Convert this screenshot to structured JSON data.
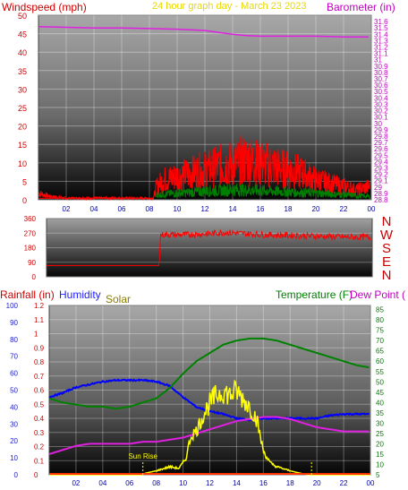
{
  "chart_data": [
    {
      "type": "line",
      "title": "24 hour graph day - March 23 2023",
      "ylabel_left": "Windspeed (mph)",
      "ylabel_right": "Barometer (in)",
      "left_ylim": [
        0,
        50
      ],
      "left_ticks": [
        "0",
        "5",
        "10",
        "15",
        "20",
        "25",
        "30",
        "35",
        "40",
        "45",
        "50"
      ],
      "right_ylim": [
        28.8,
        31.7
      ],
      "right_ticks": [
        "28.8",
        "28.9",
        "29",
        "29.1",
        "29.2",
        "29.3",
        "29.4",
        "29.5",
        "29.6",
        "29.7",
        "29.8",
        "29.9",
        "30",
        "30.1",
        "30.2",
        "30.3",
        "30.4",
        "30.5",
        "30.6",
        "30.7",
        "30.8",
        "30.9",
        "31",
        "31.1",
        "31.2",
        "31.3",
        "31.4",
        "31.5",
        "31.6"
      ],
      "x_ticks": [
        "02",
        "04",
        "06",
        "08",
        "10",
        "12",
        "14",
        "16",
        "18",
        "20",
        "22",
        "00"
      ],
      "xlim": [
        0,
        24
      ],
      "grid": true,
      "series": [
        {
          "name": "Barometer",
          "axis": "right",
          "color": "#e020e0",
          "x": [
            0,
            2,
            4,
            6,
            8,
            10,
            12,
            13,
            14,
            15,
            16,
            18,
            20,
            22,
            23.8
          ],
          "y": [
            31.52,
            31.51,
            31.5,
            31.5,
            31.49,
            31.48,
            31.46,
            31.43,
            31.4,
            31.38,
            31.37,
            31.37,
            31.37,
            31.36,
            31.36
          ]
        },
        {
          "name": "Wind Gust",
          "axis": "left",
          "color": "#ff0000",
          "x": [
            0,
            0.8,
            2,
            4,
            6,
            8.3,
            8.5,
            9,
            10,
            11,
            12,
            13,
            14,
            15,
            16,
            17,
            18,
            19,
            20,
            21,
            22,
            23,
            23.9
          ],
          "y": [
            2,
            1,
            0.5,
            0.5,
            0.5,
            0.5,
            4,
            6,
            7,
            8,
            9,
            10,
            11,
            12,
            11,
            10,
            9,
            8,
            6,
            5,
            4,
            3,
            4
          ]
        },
        {
          "name": "Wind Speed",
          "axis": "left",
          "color": "#008000",
          "x": [
            8.5,
            10,
            12,
            14,
            16,
            18,
            20,
            22,
            23.9
          ],
          "y": [
            1.5,
            2,
            2.5,
            3,
            2.8,
            2.4,
            2,
            1.5,
            1
          ]
        }
      ]
    },
    {
      "type": "line",
      "ylabel_right": "N W S E N",
      "compass_letters": [
        "N",
        "W",
        "S",
        "E",
        "N"
      ],
      "left_ylim": [
        0,
        360
      ],
      "left_ticks": [
        "0",
        "90",
        "180",
        "270",
        "360"
      ],
      "xlim": [
        0,
        24
      ],
      "series": [
        {
          "name": "Wind Direction",
          "color": "#ff0000",
          "x": [
            0,
            8.3,
            8.4,
            10,
            12,
            13,
            14,
            16,
            18,
            20,
            22,
            23.9
          ],
          "y": [
            70,
            70,
            260,
            260,
            265,
            275,
            270,
            260,
            255,
            250,
            245,
            245
          ]
        }
      ]
    },
    {
      "type": "line",
      "ylabel_left": "Rainfall (in)",
      "ylabel_left2": "Humidity",
      "ylabel_solar": "Solar",
      "ylabel_right": "Temperature (F)",
      "ylabel_right2": "Dew Point (",
      "rain_ticks": [
        "0",
        "10",
        "20",
        "30",
        "40",
        "50",
        "60",
        "70",
        "80",
        "90",
        "100"
      ],
      "humidity_ticks": [
        "0",
        "0.1",
        "0.2",
        "0.3",
        "0.4",
        "0.5",
        "0.6",
        "0.7",
        "0.8",
        "0.9",
        "1",
        "1.1",
        "1.2"
      ],
      "humidity_ylim": [
        0,
        1.2
      ],
      "temp_ticks": [
        "5",
        "10",
        "15",
        "20",
        "25",
        "30",
        "35",
        "40",
        "45",
        "50",
        "55",
        "60",
        "65",
        "70",
        "75",
        "80",
        "85"
      ],
      "temp_ylim": [
        5,
        87
      ],
      "x_ticks": [
        "02",
        "04",
        "06",
        "08",
        "10",
        "12",
        "14",
        "16",
        "18",
        "20",
        "22",
        "00"
      ],
      "xlim": [
        0,
        24
      ],
      "annotations": [
        {
          "text": "Sun Rise",
          "x": 7.0
        },
        {
          "text": "",
          "x": 19.6
        }
      ],
      "series": [
        {
          "name": "Humidity",
          "color": "#0000ff",
          "x": [
            0,
            1,
            2,
            3,
            4,
            5,
            6,
            7,
            8,
            9,
            10,
            11,
            12,
            13,
            14,
            15,
            16,
            17,
            18,
            19,
            20,
            21,
            22,
            23,
            23.9
          ],
          "y": [
            0.55,
            0.58,
            0.62,
            0.64,
            0.66,
            0.67,
            0.67,
            0.67,
            0.66,
            0.63,
            0.55,
            0.48,
            0.45,
            0.43,
            0.4,
            0.39,
            0.4,
            0.4,
            0.4,
            0.4,
            0.4,
            0.42,
            0.43,
            0.43,
            0.43
          ]
        },
        {
          "name": "Temperature",
          "color": "#008000",
          "x": [
            0,
            1,
            2,
            3,
            4,
            5,
            6,
            7,
            8,
            9,
            10,
            11,
            12,
            13,
            14,
            15,
            16,
            17,
            18,
            19,
            20,
            21,
            22,
            23,
            23.9
          ],
          "y": [
            42,
            40,
            39,
            38,
            38,
            37,
            38,
            40,
            42,
            47,
            54,
            60,
            64,
            68,
            70,
            71,
            71,
            70,
            68,
            66,
            64,
            62,
            60,
            58,
            57
          ]
        },
        {
          "name": "Dew Point",
          "color": "#e020e0",
          "x": [
            0,
            1,
            2,
            3,
            4,
            5,
            6,
            7,
            8,
            9,
            10,
            11,
            12,
            13,
            14,
            15,
            16,
            17,
            18,
            19,
            20,
            21,
            22,
            23,
            23.9
          ],
          "y": [
            15,
            17,
            19,
            20,
            20,
            20,
            20,
            21,
            21,
            22,
            23,
            25,
            27,
            29,
            31,
            32,
            33,
            33,
            32,
            30,
            28,
            27,
            26,
            26,
            26
          ]
        },
        {
          "name": "Solar",
          "color": "#ffff00",
          "x": [
            0,
            6.9,
            7.2,
            8,
            9,
            9.7,
            10.2,
            10.6,
            11,
            11.5,
            12,
            12.5,
            13,
            13.5,
            14,
            14.5,
            15,
            15.5,
            16,
            16.5,
            17,
            18,
            19,
            19.5,
            24
          ],
          "y": [
            0,
            0,
            0.02,
            0.05,
            0.1,
            0.08,
            0.2,
            0.5,
            0.55,
            0.75,
            0.9,
            1.0,
            1.05,
            1.0,
            1.05,
            0.95,
            0.85,
            0.7,
            0.3,
            0.15,
            0.1,
            0.05,
            0.01,
            0,
            0
          ]
        }
      ]
    }
  ]
}
